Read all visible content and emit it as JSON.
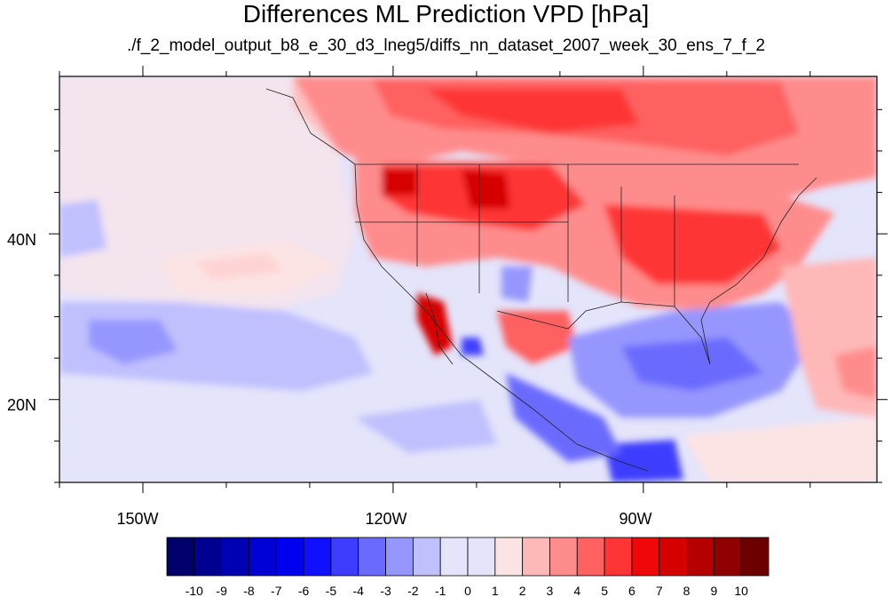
{
  "chart_data": {
    "type": "heatmap",
    "title": "Differences ML Prediction VPD [hPa]",
    "subtitle": "./f_2_model_output_b8_e_30_d3_lneg5/diffs_nn_dataset_2007_week_30_ens_7_f_2",
    "xlabel": "",
    "ylabel": "",
    "x_ticks": [
      "150W",
      "120W",
      "90W"
    ],
    "y_ticks": [
      "40N",
      "20N"
    ],
    "lon_range": [
      -160,
      -62
    ],
    "lat_range": [
      10,
      59
    ],
    "colorbar": {
      "labels": [
        "-10",
        "-9",
        "-8",
        "-7",
        "-6",
        "-5",
        "-4",
        "-3",
        "-2",
        "-1",
        "0",
        "1",
        "2",
        "3",
        "4",
        "5",
        "6",
        "7",
        "8",
        "9",
        "10"
      ],
      "colors": [
        "#00006b",
        "#000091",
        "#0000b4",
        "#0000d6",
        "#0000f0",
        "#1010ff",
        "#3d3dff",
        "#6a6aff",
        "#9696ff",
        "#c0c0ff",
        "#e4e4fb",
        "#fde4e4",
        "#ffb8b8",
        "#ff8c8c",
        "#ff6060",
        "#ff3434",
        "#f00808",
        "#d60000",
        "#b40000",
        "#910000",
        "#6b0000"
      ]
    }
  }
}
